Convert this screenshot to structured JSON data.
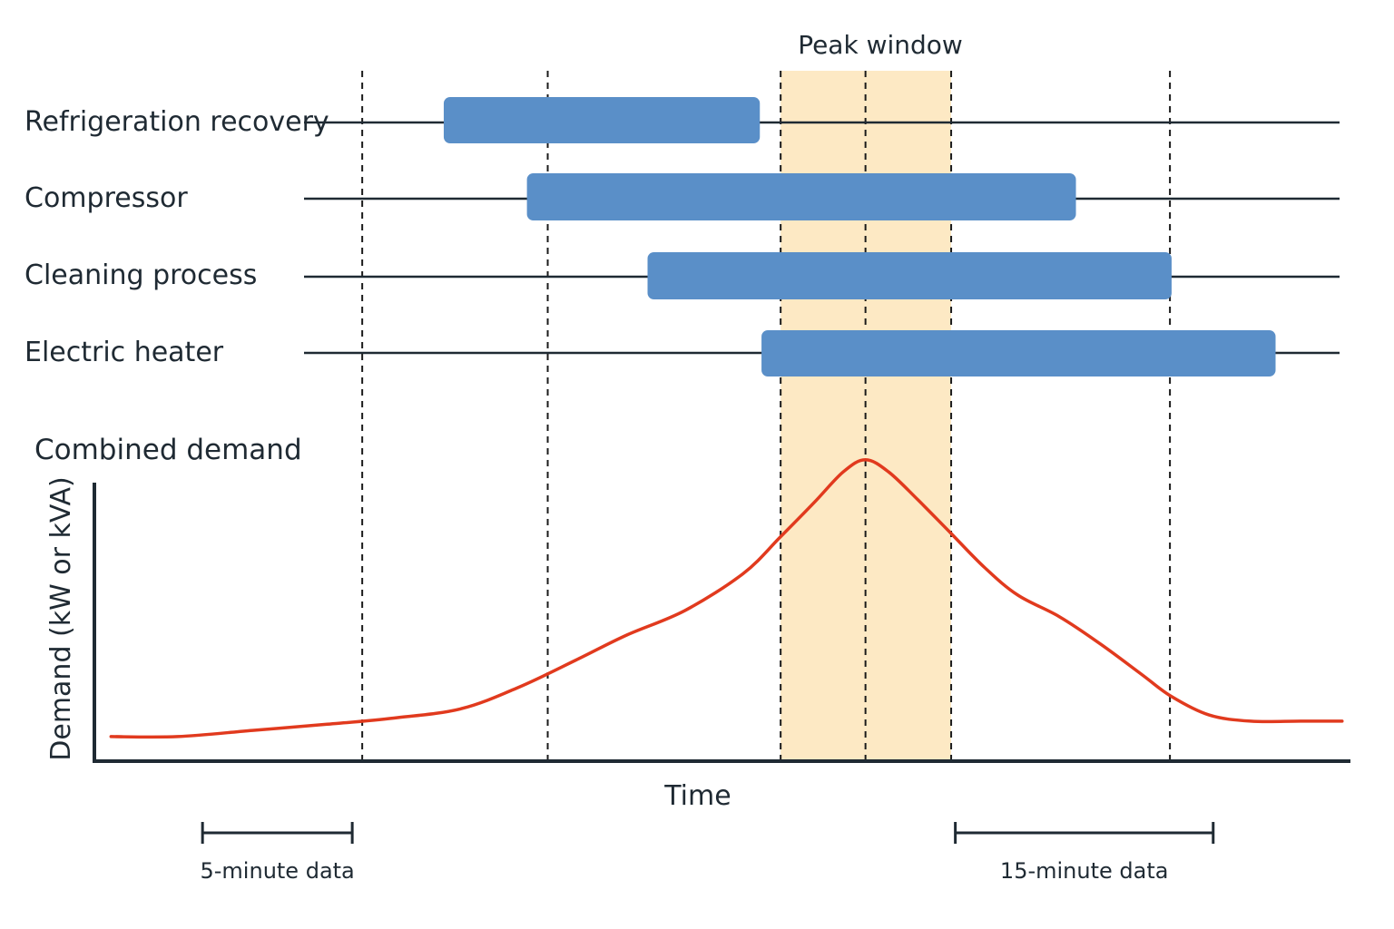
{
  "peak_window": {
    "label": "Peak window",
    "shade_color": "#fde9c4"
  },
  "timeline": {
    "bar_color": "#5a8fc8",
    "rows": [
      {
        "label": "Refrigeration recovery",
        "start": 1.4,
        "end": 5.2
      },
      {
        "label": "Compressor",
        "start": 2.4,
        "end": 9.0
      },
      {
        "label": "Cleaning process",
        "start": 3.85,
        "end": 10.15
      },
      {
        "label": "Electric heater",
        "start": 5.22,
        "end": 11.4
      }
    ]
  },
  "markers": {
    "dashed_times": [
      0.42,
      2.65,
      5.45,
      6.47,
      7.5,
      10.13
    ],
    "peak_window_range": [
      5.45,
      7.5
    ]
  },
  "chart_data": {
    "type": "line",
    "title": "Combined demand",
    "xlabel": "Time",
    "ylabel": "Demand (kW or kVA)",
    "line_color": "#e13a1e",
    "series": [
      {
        "x": [
          -2.6,
          -1.8,
          -0.9,
          0.0,
          0.8,
          1.6,
          2.3,
          3.0,
          3.6,
          4.3,
          5.0,
          5.45,
          5.85,
          6.2,
          6.47,
          6.75,
          7.1,
          7.5,
          7.9,
          8.3,
          8.8,
          9.3,
          9.8,
          10.15,
          10.6,
          11.1,
          11.7,
          12.2
        ],
        "y": [
          0.08,
          0.08,
          0.1,
          0.12,
          0.14,
          0.17,
          0.24,
          0.33,
          0.41,
          0.49,
          0.61,
          0.73,
          0.84,
          0.94,
          0.98,
          0.94,
          0.85,
          0.74,
          0.63,
          0.54,
          0.47,
          0.38,
          0.28,
          0.21,
          0.15,
          0.13,
          0.13,
          0.13
        ]
      }
    ],
    "xlim": [
      -2.8,
      12.3
    ],
    "ylim": [
      0,
      1
    ]
  },
  "scale_bars": [
    {
      "label": "5-minute data",
      "start": -1.5,
      "end": 0.3
    },
    {
      "label": "15-minute data",
      "start": 7.55,
      "end": 10.65
    }
  ]
}
